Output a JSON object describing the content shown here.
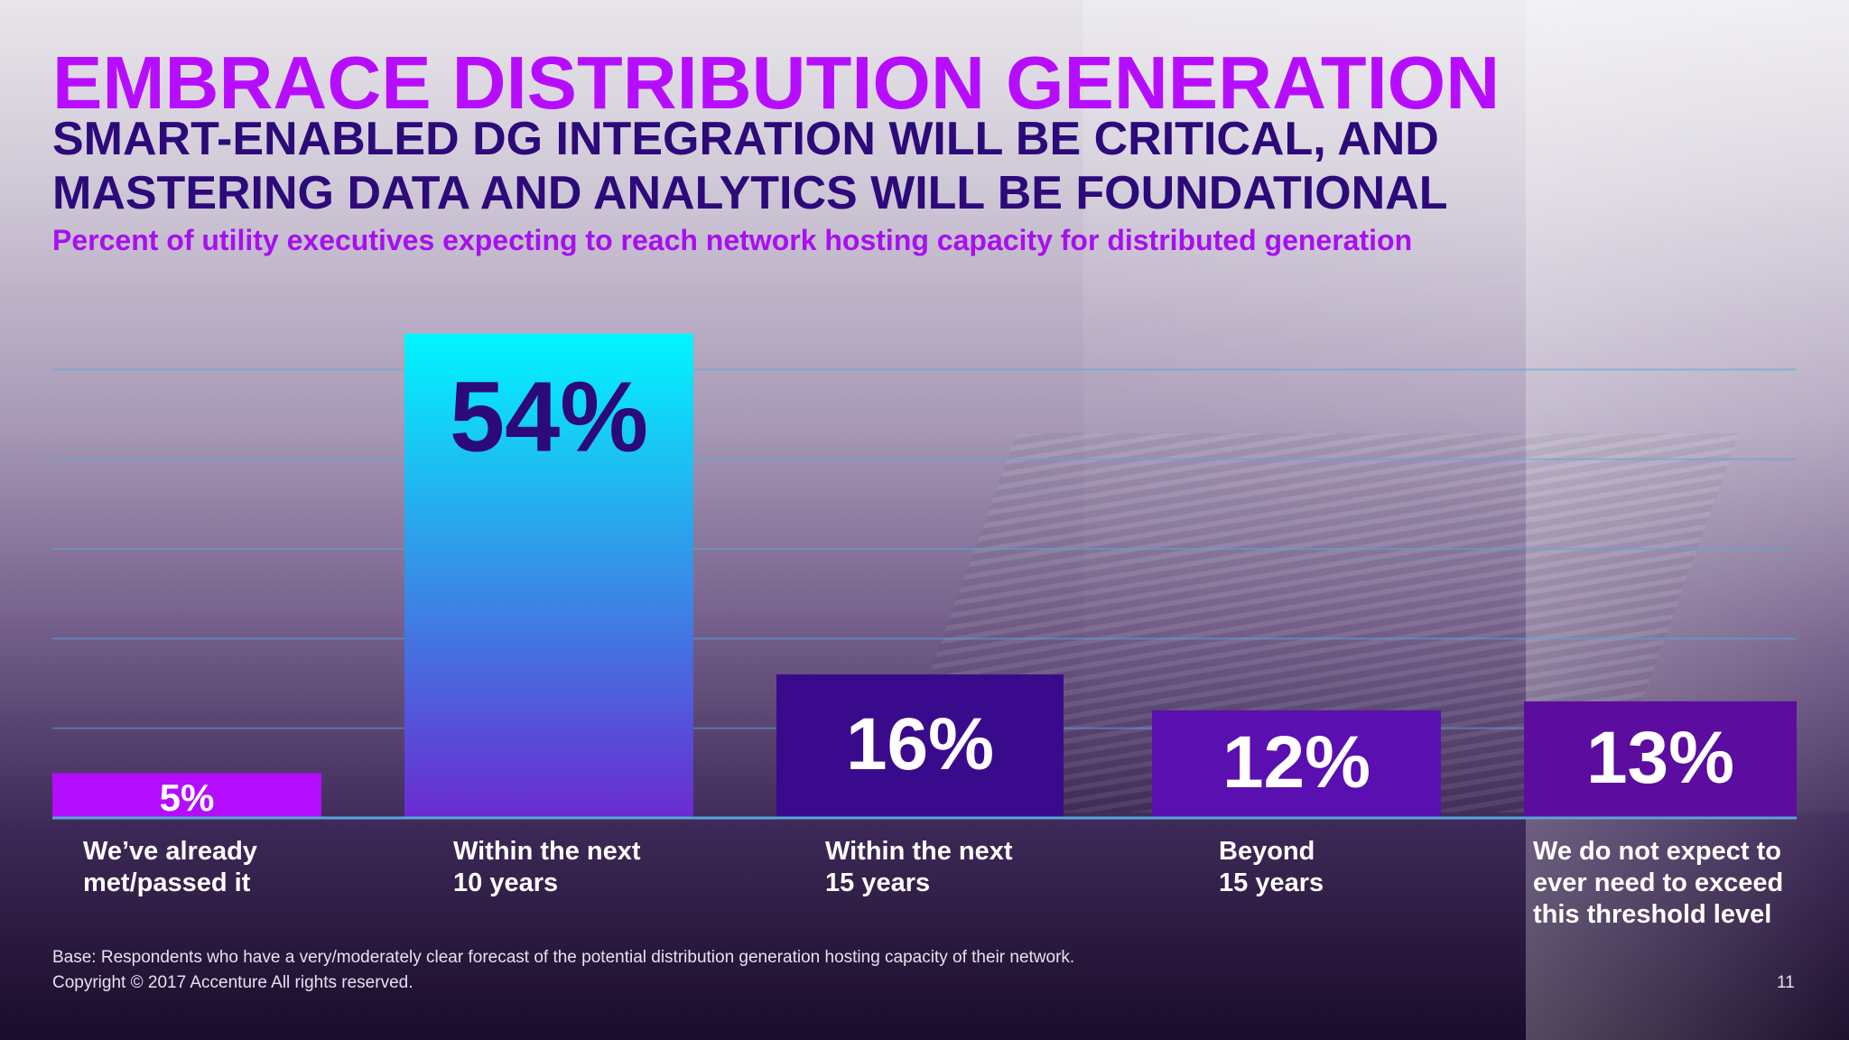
{
  "title": "EMBRACE DISTRIBUTION GENERATION",
  "subtitle_line1": "SMART-ENABLED DG INTEGRATION WILL BE CRITICAL, AND",
  "subtitle_line2": "MASTERING DATA AND ANALYTICS WILL BE FOUNDATIONAL",
  "chart_description": "Percent of utility executives expecting to reach network hosting capacity for distributed generation",
  "footer": {
    "base_note": "Base: Respondents who have a very/moderately clear forecast of the potential distribution generation hosting capacity of their network.",
    "copyright": "Copyright © 2017 Accenture  All rights reserved.",
    "page_number": "11"
  },
  "colors": {
    "title": "#b70dff",
    "subtitle": "#2c0a7a",
    "bar_5": "#b40cff",
    "bar_54_top": "#00f6ff",
    "bar_54_bottom": "#6a2ad0",
    "bar_16": "#3a0a8c",
    "bar_12": "#5a0fb0",
    "bar_13": "#5c0c9e",
    "gridline": "#5aa6d8"
  },
  "chart_data": {
    "type": "bar",
    "categories": [
      "We’ve already\nmet/passed it",
      "Within the next\n10 years",
      "Within the next\n15 years",
      "Beyond\n15 years",
      "We do not expect to\never need to exceed\nthis threshold level"
    ],
    "values": [
      5,
      54,
      16,
      12,
      13
    ],
    "value_labels": [
      "5%",
      "54%",
      "16%",
      "12%",
      "13%"
    ],
    "unit": "%",
    "ylim": [
      0,
      60
    ],
    "grid": true,
    "legend": "none"
  }
}
